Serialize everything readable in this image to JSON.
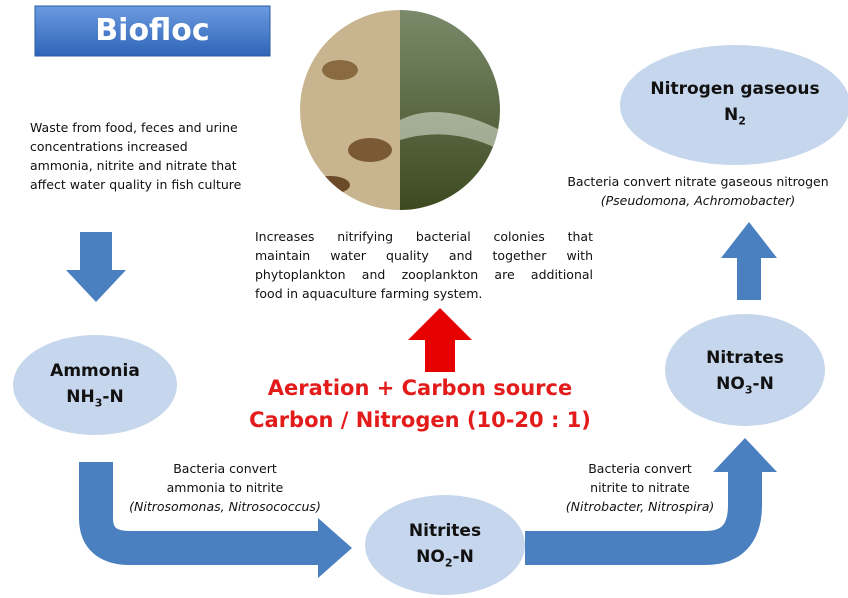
{
  "header": {
    "title": "Biofloc"
  },
  "waste_text": {
    "lines": [
      "Waste from food, feces and urine",
      "concentrations increased",
      "ammonia, nitrite and nitrate that",
      "affect water quality in fish culture"
    ]
  },
  "center_text": {
    "lines": [
      "Increases nitrifying bacterial colonies that",
      "maintain water quality and together with",
      "phytoplankton and zooplankton are additional",
      "food in aquaculture farming system."
    ]
  },
  "aeration": {
    "lines": [
      "Aeration + Carbon source",
      "Carbon / Nitrogen (10-20 : 1)"
    ]
  },
  "nodes": [
    {
      "name": "Ammonia",
      "formula": "NH",
      "sub": "3",
      "suffix": "-N"
    },
    {
      "name": "Nitrites",
      "formula": "NO",
      "sub": "2",
      "suffix": "-N"
    },
    {
      "name": "Nitrates",
      "formula": "NO",
      "sub": "3",
      "suffix": "-N"
    },
    {
      "name": "Nitrogen gaseous",
      "formula": "N",
      "sub": "2"
    }
  ],
  "captions": [
    {
      "lines": [
        "Bacteria convert",
        "ammonia to nitrite"
      ],
      "organisms": "(Nitrosomonas, Nitrosococcus)"
    },
    {
      "lines": [
        "Bacteria convert",
        "nitrite to  nitrate"
      ],
      "organisms": "(Nitrobacter, Nitrospira)"
    },
    {
      "lines": [
        "Bacteria convert nitrate gaseous nitrogen"
      ],
      "organisms": "(Pseudomona, Achromobacter)"
    }
  ]
}
